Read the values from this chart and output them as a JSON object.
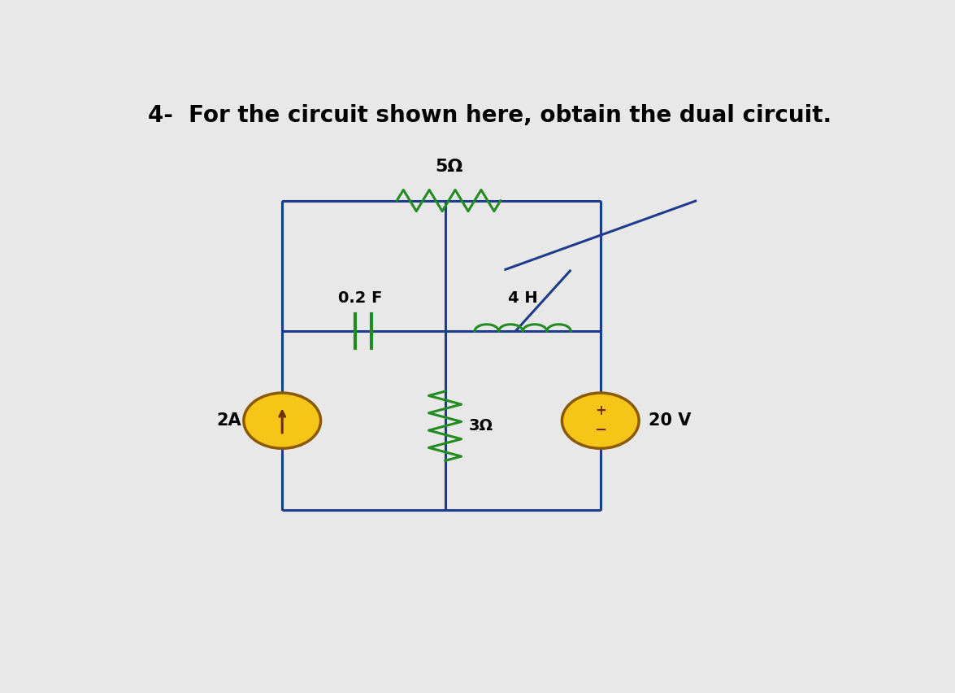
{
  "title": "4-  For the circuit shown here, obtain the dual circuit.",
  "title_fontsize": 20,
  "title_fontweight": "bold",
  "bg_color": "#e8e8e8",
  "wire_color": "#1e3c8c",
  "component_color": "#228b22",
  "source_fill": "#f5c518",
  "source_border": "#8b5a00",
  "label_5ohm": "5Ω",
  "label_02F": "0.2 F",
  "label_4H": "4 H",
  "label_3ohm": "3Ω",
  "label_2A": "2A",
  "label_20V": "20 V",
  "xl": 0.22,
  "xm": 0.44,
  "xr": 0.65,
  "yt": 0.78,
  "ym": 0.535,
  "yb": 0.2
}
